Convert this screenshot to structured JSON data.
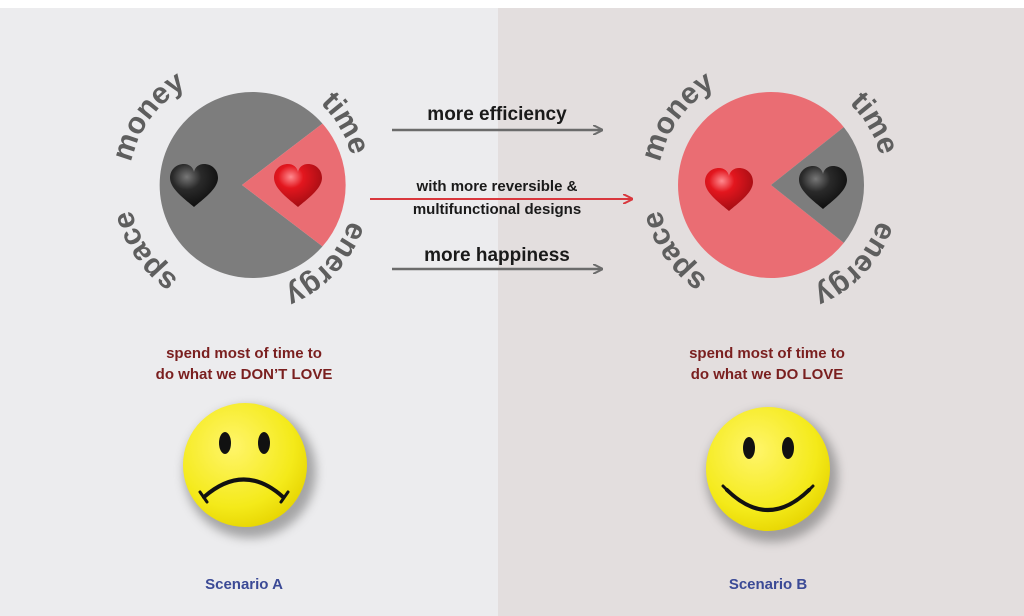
{
  "resource_labels": {
    "money": "money",
    "time": "time",
    "space": "space",
    "energy": "energy"
  },
  "arrows": {
    "top": "more efficiency",
    "middle_line1": "with more reversible &",
    "middle_line2": "multifunctional designs",
    "bottom": "more happiness"
  },
  "scenario_a": {
    "caption_line1": "spend most of time to",
    "caption_line2": "do what we DON’T LOVE",
    "label": "Scenario A",
    "mood": "sad"
  },
  "scenario_b": {
    "caption_line1": "spend most of time to",
    "caption_line2": "do what we DO LOVE",
    "label": "Scenario B",
    "mood": "happy"
  },
  "colors": {
    "gray": "#7d7d7d",
    "red": "#ea6d73",
    "heart_red": "#e3161e",
    "heart_dark": "#2a2a2a",
    "smiley_yellow": "#f4ea1a",
    "caption": "#7a1f1f",
    "scenario_label": "#3b4a96",
    "arrow_gray": "#6b6b6b",
    "arrow_red": "#d9373d"
  }
}
